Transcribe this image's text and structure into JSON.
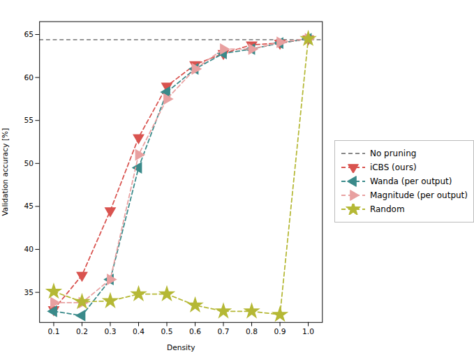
{
  "chart_data": {
    "type": "line",
    "xlabel": "Density",
    "ylabel": "Validation accuracy [%]",
    "x": [
      0.1,
      0.2,
      0.3,
      0.4,
      0.5,
      0.6,
      0.7,
      0.8,
      0.9,
      1.0
    ],
    "series": [
      {
        "name": "No pruning",
        "type": "hline",
        "y": 64.4,
        "color": "#888888",
        "line_style": "dashed"
      },
      {
        "name": "iCBS (ours)",
        "color": "#d9534f",
        "marker": "triangle-down",
        "line_style": "dashed",
        "values": [
          33.0,
          37.0,
          44.5,
          53.0,
          59.0,
          61.5,
          62.8,
          63.8,
          64.0,
          64.5
        ]
      },
      {
        "name": "Wanda (per output)",
        "color": "#3a8a8a",
        "marker": "triangle-left",
        "line_style": "dashed",
        "values": [
          32.8,
          32.3,
          36.5,
          49.5,
          58.3,
          61.0,
          62.8,
          63.3,
          64.0,
          64.5
        ]
      },
      {
        "name": "Magnitude (per output)",
        "color": "#e8a0a0",
        "marker": "triangle-right",
        "line_style": "dashed",
        "values": [
          33.8,
          33.8,
          36.5,
          51.0,
          57.5,
          61.0,
          63.3,
          63.3,
          64.1,
          64.5
        ]
      },
      {
        "name": "Random",
        "color": "#b5b835",
        "marker": "star",
        "line_style": "dashed",
        "values": [
          35.1,
          33.9,
          34.0,
          34.8,
          34.8,
          33.5,
          32.8,
          32.8,
          32.4,
          64.5
        ]
      }
    ],
    "xlim": [
      0.05,
      1.05
    ],
    "ylim": [
      31.5,
      66.5
    ],
    "xticks": [
      0.1,
      0.2,
      0.3,
      0.4,
      0.5,
      0.6,
      0.7,
      0.8,
      0.9,
      {
        "value": 1.0,
        "label": "1.0"
      }
    ],
    "yticks": [
      35,
      40,
      45,
      50,
      55,
      60,
      65
    ],
    "grid": false,
    "legend": "right"
  }
}
